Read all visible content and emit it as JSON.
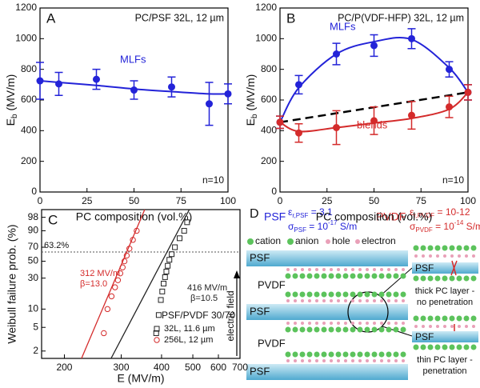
{
  "chart_data": [
    {
      "type": "line",
      "panel": "A",
      "title": "PC/PSF 32L, 12 µm",
      "ylabel": {
        "main": "E",
        "sub": "b",
        "rest": " (MV/m)"
      },
      "xlabel": "PC composition (vol.%)",
      "x": [
        0,
        10,
        30,
        50,
        70,
        90,
        100
      ],
      "xlim": [
        0,
        100
      ],
      "xticks": [
        0,
        25,
        50,
        75,
        100
      ],
      "ylim": [
        0,
        1200
      ],
      "yticks": [
        0,
        200,
        400,
        600,
        800,
        1000,
        1200
      ],
      "series": [
        {
          "name": "MLFs",
          "color": "#2323d8",
          "values": [
            725,
            705,
            735,
            665,
            685,
            575,
            640
          ],
          "errors": [
            120,
            75,
            65,
            60,
            65,
            140,
            65
          ],
          "fit": [
            725,
            715,
            695,
            672,
            655,
            640,
            640
          ]
        }
      ],
      "annotation": "n=10"
    },
    {
      "type": "line",
      "panel": "B",
      "title": "PC/P(VDF-HFP) 32L, 12 µm",
      "ylabel": {
        "main": "E",
        "sub": "b",
        "rest": " (MV/m)"
      },
      "xlabel": "PC composition (vol.%)",
      "x": [
        0,
        10,
        30,
        50,
        70,
        90,
        100
      ],
      "xlim": [
        0,
        100
      ],
      "xticks": [
        0,
        25,
        50,
        75,
        100
      ],
      "ylim": [
        0,
        1200
      ],
      "yticks": [
        0,
        200,
        400,
        600,
        800,
        1000,
        1200
      ],
      "series": [
        {
          "name": "MLFs",
          "color": "#2323d8",
          "values": [
            455,
            700,
            900,
            955,
            1000,
            800,
            650
          ],
          "errors": [
            40,
            60,
            70,
            70,
            65,
            50,
            50
          ],
          "fit": [
            455,
            680,
            900,
            980,
            995,
            810,
            650
          ]
        },
        {
          "name": "blends",
          "color": "#d42b2b",
          "values": [
            455,
            385,
            420,
            465,
            500,
            555,
            650
          ],
          "errors": [
            40,
            60,
            110,
            90,
            90,
            70,
            50
          ],
          "fit": [
            455,
            395,
            420,
            450,
            480,
            540,
            650
          ]
        }
      ],
      "reference_line": {
        "x": [
          0,
          100
        ],
        "values": [
          455,
          650
        ],
        "color": "#000000"
      },
      "annotation": "n=10"
    },
    {
      "type": "scatter",
      "panel": "C",
      "xscale": "log",
      "yscale": "weibull",
      "xlabel": "E (MV/m)",
      "ylabel": "Weibull failure prob. (%)",
      "xlim": [
        170,
        700
      ],
      "xticks": [
        200,
        300,
        400,
        500,
        600,
        700
      ],
      "ylim": [
        1.5,
        99.5
      ],
      "yticks": [
        2,
        5,
        10,
        30,
        50,
        70,
        90,
        98
      ],
      "hline": {
        "value": 63.2,
        "label": "63.2%"
      },
      "legend_title": "PSF/PVDF 30/70",
      "series": [
        {
          "name": "32L, 11.6 µm",
          "color": "#222222",
          "marker": "square",
          "x": [
            385,
            392,
            398,
            402,
            406,
            410,
            414,
            418,
            423,
            430,
            440,
            455,
            470,
            480
          ],
          "values": [
            4,
            8,
            14,
            19,
            25,
            31,
            37,
            44,
            52,
            60,
            70,
            82,
            90,
            96
          ],
          "fit": {
            "scale": 416,
            "beta": 10.5,
            "label": "416 MV/m",
            "beta_label": "β=10.5"
          }
        },
        {
          "name": "256L, 12 µm",
          "color": "#d42b2b",
          "marker": "circle",
          "x": [
            265,
            272,
            280,
            287,
            293,
            298,
            303,
            307,
            312,
            318,
            326,
            335
          ],
          "values": [
            4,
            10,
            16,
            22,
            28,
            35,
            42,
            50,
            58,
            68,
            80,
            90
          ],
          "fit": {
            "scale": 312,
            "beta": 13.0,
            "label": "312 MV/m",
            "beta_label": "β=13.0"
          }
        }
      ]
    }
  ],
  "diagram": {
    "panel": "D",
    "psf": {
      "name": "PSF",
      "eps": {
        "sym": "ε",
        "sub": "r,PSF",
        "rest": " = 3.1"
      },
      "sigma": {
        "sym": "σ",
        "sub": "PSF",
        "rest": " = 10",
        "sup": "-17",
        "unit": " S/m"
      }
    },
    "pvdf": {
      "name": "PVDF",
      "eps": {
        "sym": "ε",
        "sub": "r,PVDF",
        "rest": " = 10-12"
      },
      "sigma": {
        "sym": "σ",
        "sub": "PVDF",
        "rest": " = 10",
        "sup": "-14",
        "unit": " S/m"
      }
    },
    "legend": [
      "cation",
      "anion",
      "hole",
      "electron"
    ],
    "layers": [
      "PSF",
      "PVDF",
      "PSF",
      "PVDF",
      "PSF"
    ],
    "field_label": "electric field",
    "inset_top": {
      "layer": "PSF",
      "caption": [
        "thick PC layer -",
        "no penetration"
      ]
    },
    "inset_bottom": {
      "layer": "PSF",
      "caption": [
        "thin PC layer -",
        "penetration"
      ]
    }
  }
}
